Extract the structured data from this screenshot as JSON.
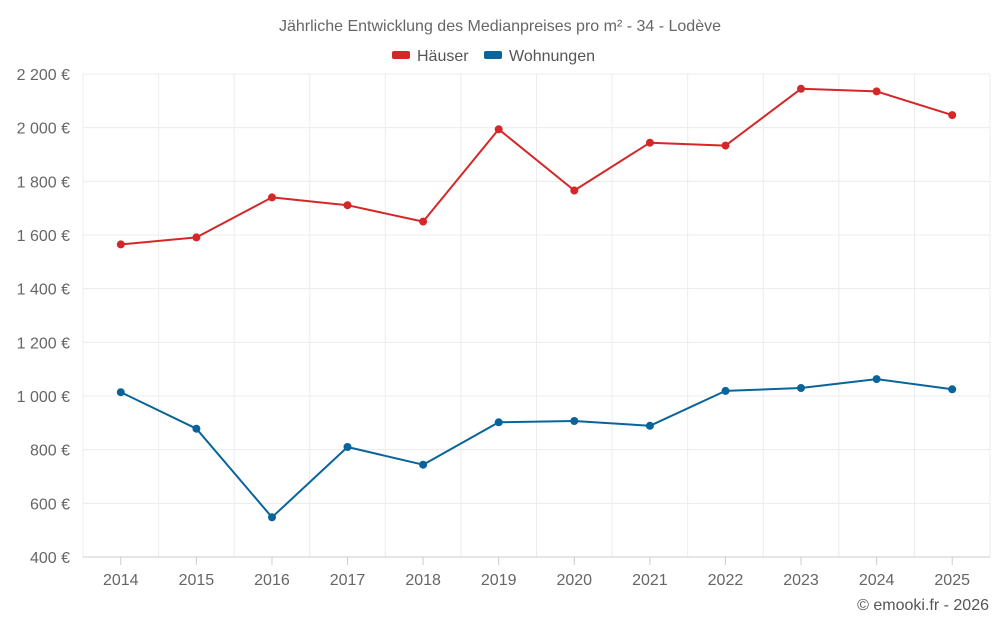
{
  "chart_data": {
    "type": "line",
    "title": "Jährliche Entwicklung des Medianpreises pro m² - 34 - Lodève",
    "categories": [
      "2014",
      "2015",
      "2016",
      "2017",
      "2018",
      "2019",
      "2020",
      "2021",
      "2022",
      "2023",
      "2024",
      "2025"
    ],
    "series": [
      {
        "name": "Häuser",
        "color": "#d62728",
        "values": [
          1565,
          1591,
          1740,
          1711,
          1650,
          1994,
          1766,
          1944,
          1933,
          2145,
          2135,
          2047
        ]
      },
      {
        "name": "Wohnungen",
        "color": "#08649a",
        "values": [
          1014,
          878,
          548,
          810,
          744,
          902,
          907,
          889,
          1019,
          1030,
          1063,
          1025
        ]
      }
    ],
    "ylim": [
      400,
      2200
    ],
    "yticks": [
      400,
      600,
      800,
      1000,
      1200,
      1400,
      1600,
      1800,
      2000,
      2200
    ],
    "ytick_labels": [
      "400 €",
      "600 €",
      "800 €",
      "1 000 €",
      "1 200 €",
      "1 400 €",
      "1 600 €",
      "1 800 €",
      "2 000 €",
      "2 200 €"
    ],
    "xlabel": "",
    "ylabel": "",
    "grid": true,
    "legend_position": "top-center"
  },
  "credit": "© emooki.fr - 2026"
}
